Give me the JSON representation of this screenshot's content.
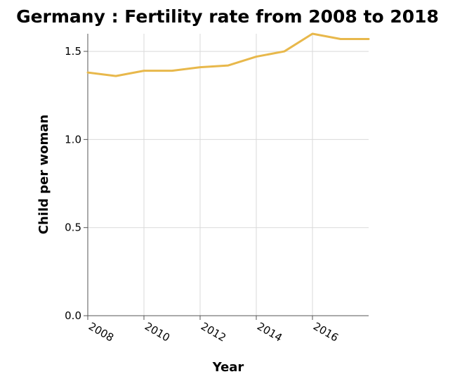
{
  "chart_data": {
    "type": "line",
    "title": "Germany : Fertility rate from 2008 to 2018",
    "xlabel": "Year",
    "ylabel": "Child per woman",
    "x": [
      2008,
      2009,
      2010,
      2011,
      2012,
      2013,
      2014,
      2015,
      2016,
      2017,
      2018
    ],
    "series": [
      {
        "values": [
          1.38,
          1.36,
          1.39,
          1.39,
          1.41,
          1.42,
          1.47,
          1.5,
          1.6,
          1.57,
          1.57
        ]
      }
    ],
    "xlim": [
      2008,
      2018
    ],
    "ylim": [
      0,
      1.6
    ],
    "x_ticks": [
      "2008",
      "2010",
      "2012",
      "2014",
      "2016"
    ],
    "y_ticks": [
      "0.0",
      "0.5",
      "1.0",
      "1.5"
    ],
    "grid": true,
    "line_color": "#e8b84b"
  }
}
